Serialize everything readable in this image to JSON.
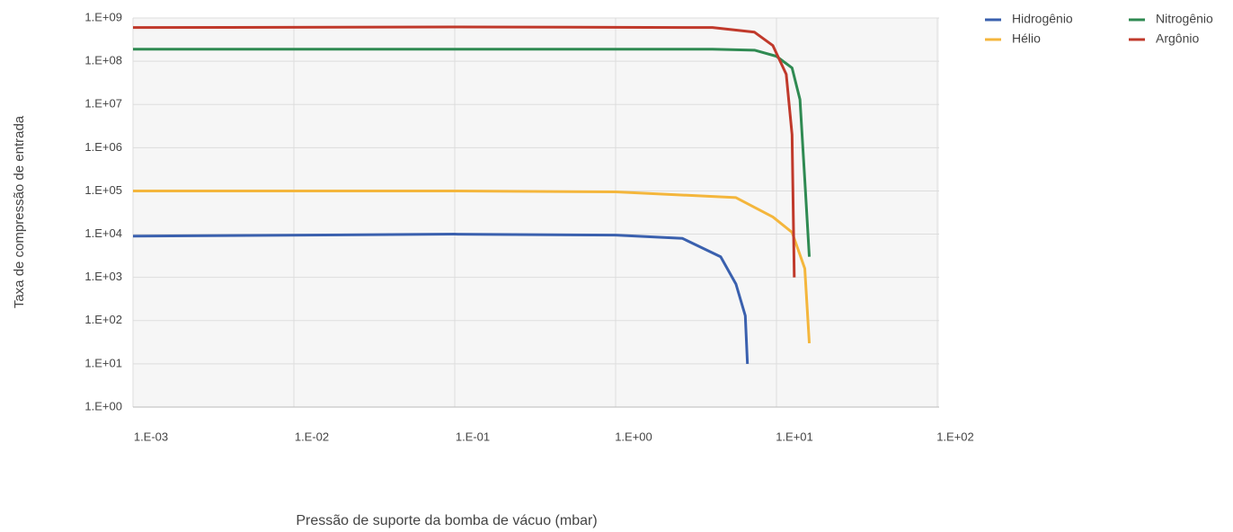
{
  "chart_data": {
    "type": "line",
    "xlabel": "Pressão de suporte da bomba de vácuo (mbar)",
    "ylabel": "Taxa de compressão de entrada",
    "xscale": "log",
    "yscale": "log",
    "grid": true,
    "legend": "top-right",
    "xlim": [
      0.001,
      100
    ],
    "ylim": [
      1,
      1000000000
    ],
    "xticks": [
      {
        "value": 0.001,
        "label": "1.E-03"
      },
      {
        "value": 0.01,
        "label": "1.E-02"
      },
      {
        "value": 0.1,
        "label": "1.E-01"
      },
      {
        "value": 1,
        "label": "1.E+00"
      },
      {
        "value": 10,
        "label": "1.E+01"
      },
      {
        "value": 100,
        "label": "1.E+02"
      }
    ],
    "yticks": [
      {
        "value": 1,
        "label": "1.E+00"
      },
      {
        "value": 10,
        "label": "1.E+01"
      },
      {
        "value": 100,
        "label": "1.E+02"
      },
      {
        "value": 1000,
        "label": "1.E+03"
      },
      {
        "value": 10000,
        "label": "1.E+04"
      },
      {
        "value": 100000,
        "label": "1.E+05"
      },
      {
        "value": 1000000,
        "label": "1.E+06"
      },
      {
        "value": 10000000,
        "label": "1.E+07"
      },
      {
        "value": 100000000,
        "label": "1.E+08"
      },
      {
        "value": 1000000000,
        "label": "1.E+09"
      }
    ],
    "series": [
      {
        "name": "Hidrogênio",
        "color": "#3a60ae",
        "x": [
          0.001,
          0.1,
          1,
          2.6,
          4.5,
          5.6,
          6.4,
          6.6
        ],
        "values": [
          9000,
          10000,
          9500,
          8000,
          3000,
          700,
          130,
          10
        ]
      },
      {
        "name": "Hélio",
        "color": "#f4b63c",
        "x": [
          0.001,
          0.1,
          1,
          5.6,
          9.5,
          12.5,
          15,
          16
        ],
        "values": [
          100000,
          100000,
          95000,
          70000,
          25000,
          11000,
          1600,
          30
        ]
      },
      {
        "name": "Nitrogênio",
        "color": "#2f8a52",
        "x": [
          0.001,
          0.1,
          4,
          7.3,
          10,
          12.5,
          14,
          15,
          16
        ],
        "values": [
          190000000,
          190000000,
          190000000,
          180000000,
          130000000,
          70000000,
          13000000,
          180000,
          3000
        ]
      },
      {
        "name": "Argônio",
        "color": "#c0392b",
        "x": [
          0.001,
          0.1,
          4,
          7.3,
          9.5,
          11.5,
          12.5,
          12.9
        ],
        "values": [
          600000000,
          620000000,
          600000000,
          470000000,
          230000000,
          50000000,
          2000000,
          1000
        ]
      }
    ]
  }
}
